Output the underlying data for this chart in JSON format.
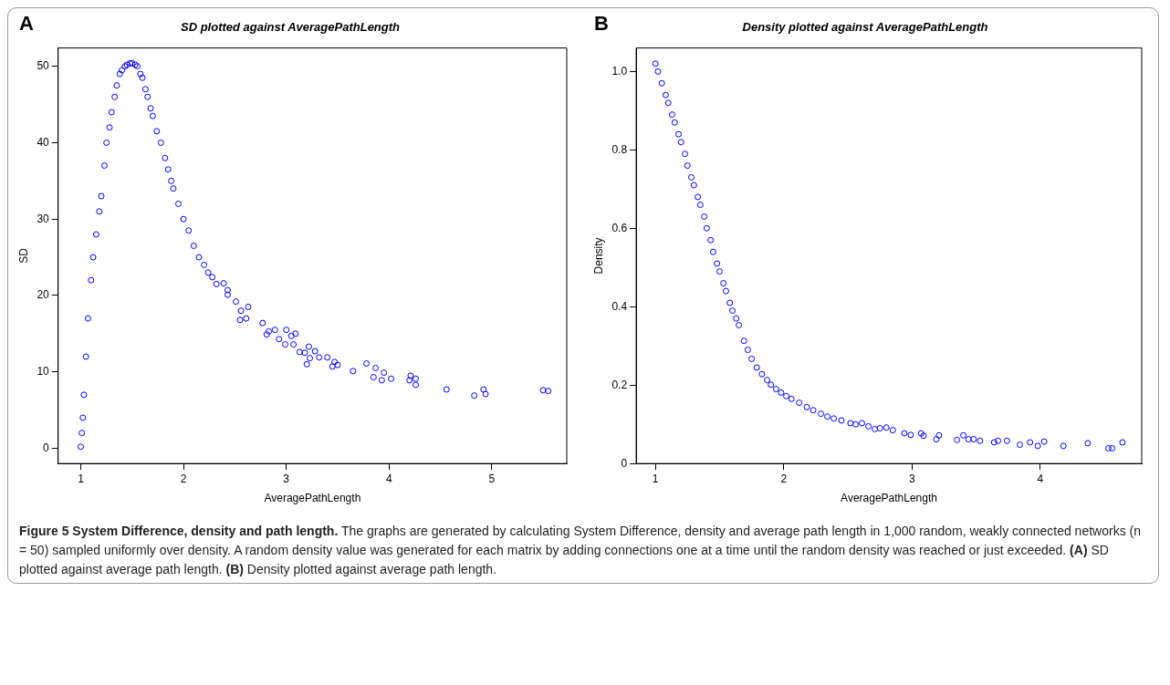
{
  "chart_data": [
    {
      "type": "scatter",
      "title": "SD plotted against AveragePathLength",
      "xlabel": "AveragePathLength",
      "ylabel": "SD",
      "annotations": [
        "A",
        "Figure 5 System Difference, density and path length.",
        " The graphs are generated by calculating System Difference, density and average path length in 1,000 random, weakly connected networks (n = 50) sampled uniformly over density. A random density value was generated for each matrix by adding connections one at a time until the random density was reached or just exceeded. ",
        "(A)",
        " SD plotted against average path length. ",
        "(B)",
        " Density plotted against average path length."
      ],
      "xlim": [
        0.78,
        5.73
      ],
      "ylim": [
        -2.0,
        52.4
      ],
      "xticks": [
        1,
        2,
        3,
        4,
        5
      ],
      "yticks": [
        0,
        10,
        20,
        30,
        40,
        50
      ],
      "grid": false,
      "marker": "circle",
      "series": [
        {
          "color": "#0000ff",
          "x": [
            1.0,
            1.01,
            1.02,
            1.03,
            1.05,
            1.07,
            1.1,
            1.12,
            1.15,
            1.18,
            1.2,
            1.23,
            1.25,
            1.28,
            1.3,
            1.33,
            1.35,
            1.38,
            1.4,
            1.43,
            1.45,
            1.48,
            1.5,
            1.53,
            1.55,
            1.58,
            1.6,
            1.63,
            1.65,
            1.68,
            1.7,
            1.74,
            1.78,
            1.82,
            1.85,
            1.88,
            1.9,
            1.95,
            2.0,
            2.05,
            2.1,
            2.15,
            2.2,
            2.24,
            2.28,
            2.32,
            2.39,
            2.43,
            2.43,
            2.51,
            2.55,
            2.56,
            2.61,
            2.63,
            2.77,
            2.81,
            2.83,
            2.89,
            2.93,
            2.99,
            3.0,
            3.05,
            3.07,
            3.09,
            3.13,
            3.18,
            3.2,
            3.22,
            3.23,
            3.28,
            3.32,
            3.4,
            3.45,
            3.47,
            3.5,
            3.65,
            3.78,
            3.85,
            3.87,
            3.93,
            3.95,
            4.02,
            4.2,
            4.21,
            4.26,
            4.26,
            4.56,
            4.83,
            4.92,
            4.94,
            5.5,
            5.55
          ],
          "values": [
            0.2,
            2,
            4,
            7,
            12,
            17,
            22,
            25,
            28,
            31,
            33,
            37,
            40,
            42,
            44,
            46,
            47.5,
            49,
            49.5,
            50,
            50.2,
            50.4,
            50.4,
            50.2,
            50,
            49,
            48.5,
            47,
            46,
            44.5,
            43.5,
            41.5,
            40,
            38,
            36.5,
            35,
            34,
            32,
            30,
            28.5,
            26.5,
            25,
            24,
            23,
            22.4,
            21.5,
            21.6,
            20.7,
            20.1,
            19.2,
            16.8,
            18.0,
            17.0,
            18.5,
            16.4,
            14.9,
            15.3,
            15.5,
            14.3,
            13.6,
            15.5,
            14.7,
            13.6,
            15.0,
            12.6,
            12.5,
            11.0,
            13.3,
            11.8,
            12.7,
            11.9,
            11.9,
            10.7,
            11.3,
            10.9,
            10.1,
            11.1,
            9.3,
            10.5,
            8.9,
            9.9,
            9.1,
            8.9,
            9.5,
            9.1,
            8.3,
            7.7,
            6.9,
            7.7,
            7.1,
            7.6,
            7.5
          ]
        }
      ]
    },
    {
      "type": "scatter",
      "title": "Density plotted against AveragePathLength",
      "xlabel": "AveragePathLength",
      "ylabel": "Density",
      "annotations": [
        "B"
      ],
      "xlim": [
        0.85,
        4.79
      ],
      "ylim": [
        0.0,
        1.06
      ],
      "xticks": [
        1,
        2,
        3,
        4
      ],
      "yticks": [
        0,
        0.2,
        0.4,
        0.6,
        0.8,
        {
          "value": 1,
          "label": "1.0"
        }
      ],
      "grid": false,
      "marker": "circle",
      "series": [
        {
          "color": "#0000ff",
          "x": [
            1.0,
            1.02,
            1.05,
            1.08,
            1.1,
            1.13,
            1.15,
            1.18,
            1.2,
            1.23,
            1.25,
            1.28,
            1.3,
            1.33,
            1.35,
            1.38,
            1.4,
            1.43,
            1.45,
            1.48,
            1.5,
            1.53,
            1.55,
            1.58,
            1.6,
            1.63,
            1.65,
            1.69,
            1.72,
            1.75,
            1.79,
            1.83,
            1.87,
            1.9,
            1.94,
            1.98,
            2.02,
            2.06,
            2.12,
            2.18,
            2.23,
            2.29,
            2.34,
            2.39,
            2.45,
            2.52,
            2.56,
            2.61,
            2.66,
            2.71,
            2.75,
            2.8,
            2.85,
            2.94,
            2.99,
            3.07,
            3.09,
            3.19,
            3.21,
            3.35,
            3.4,
            3.44,
            3.48,
            3.53,
            3.64,
            3.67,
            3.74,
            3.84,
            3.92,
            3.98,
            4.03,
            4.18,
            4.37,
            4.53,
            4.56,
            4.64
          ],
          "values": [
            1.02,
            1.0,
            0.97,
            0.94,
            0.92,
            0.89,
            0.87,
            0.84,
            0.82,
            0.79,
            0.76,
            0.73,
            0.71,
            0.68,
            0.66,
            0.63,
            0.6,
            0.57,
            0.54,
            0.51,
            0.49,
            0.46,
            0.44,
            0.41,
            0.39,
            0.37,
            0.353,
            0.313,
            0.29,
            0.267,
            0.245,
            0.228,
            0.213,
            0.201,
            0.19,
            0.181,
            0.172,
            0.165,
            0.155,
            0.144,
            0.136,
            0.127,
            0.12,
            0.115,
            0.11,
            0.103,
            0.1,
            0.103,
            0.095,
            0.088,
            0.09,
            0.092,
            0.085,
            0.077,
            0.073,
            0.077,
            0.071,
            0.062,
            0.072,
            0.06,
            0.072,
            0.062,
            0.062,
            0.058,
            0.054,
            0.058,
            0.058,
            0.048,
            0.054,
            0.045,
            0.056,
            0.045,
            0.052,
            0.039,
            0.039,
            0.054
          ]
        }
      ]
    }
  ]
}
